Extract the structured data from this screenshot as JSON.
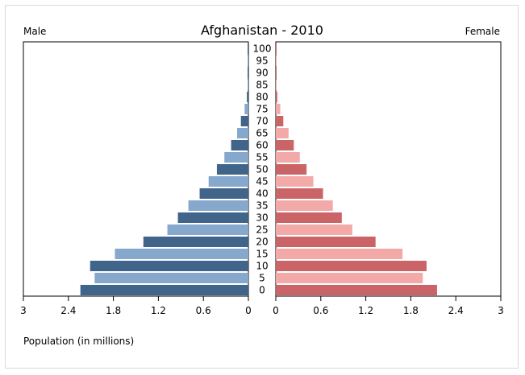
{
  "chart_data": {
    "type": "bar",
    "title": "Afghanistan - 2010",
    "left_label": "Male",
    "right_label": "Female",
    "xlabel": "Population (in millions)",
    "xlim": [
      0,
      3
    ],
    "x_ticks": [
      "3",
      "2.4",
      "1.8",
      "1.2",
      "0.6",
      "0",
      "0",
      "0.6",
      "1.2",
      "1.8",
      "2.4",
      "3"
    ],
    "categories": [
      "0",
      "5",
      "10",
      "15",
      "20",
      "25",
      "30",
      "35",
      "40",
      "45",
      "50",
      "55",
      "60",
      "65",
      "70",
      "75",
      "80",
      "85",
      "90",
      "95",
      "100"
    ],
    "series": [
      {
        "name": "Male",
        "values": [
          2.24,
          2.05,
          2.11,
          1.78,
          1.4,
          1.08,
          0.94,
          0.8,
          0.65,
          0.53,
          0.42,
          0.32,
          0.23,
          0.15,
          0.1,
          0.05,
          0.02,
          0.008,
          0.004,
          0.002,
          0.001
        ]
      },
      {
        "name": "Female",
        "values": [
          2.15,
          1.96,
          2.01,
          1.69,
          1.33,
          1.02,
          0.88,
          0.76,
          0.63,
          0.5,
          0.41,
          0.32,
          0.24,
          0.17,
          0.1,
          0.06,
          0.02,
          0.008,
          0.004,
          0.002,
          0.001
        ]
      }
    ],
    "colors": {
      "male_dark": "#40648a",
      "male_light": "#85a8cc",
      "female_dark": "#cb6466",
      "female_light": "#f2a9a7"
    }
  }
}
